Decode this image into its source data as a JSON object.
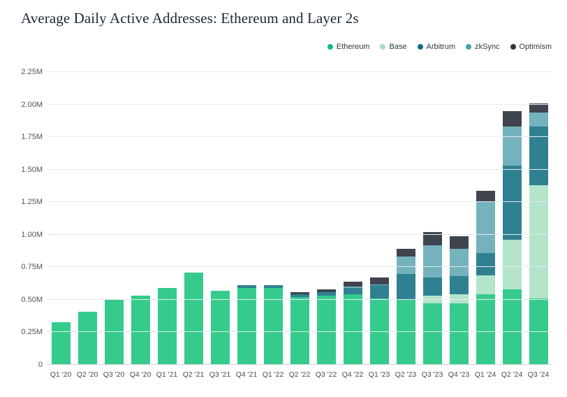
{
  "chart_data": {
    "type": "bar",
    "stacked": true,
    "title": "Average Daily Active Addresses: Ethereum and Layer 2s",
    "xlabel": "",
    "ylabel": "",
    "ylim": [
      0,
      2.25
    ],
    "y_unit": "M",
    "yticks": [
      "0",
      "0.25M",
      "0.50M",
      "0.75M",
      "1.00M",
      "1.25M",
      "1.50M",
      "1.75M",
      "2.00M",
      "2.25M"
    ],
    "ytick_values": [
      0,
      0.25,
      0.5,
      0.75,
      1.0,
      1.25,
      1.5,
      1.75,
      2.0,
      2.25
    ],
    "grid": "horizontal",
    "legend_position": "top-right",
    "categories": [
      "Q1 '20",
      "Q2 '20",
      "Q3 '20",
      "Q4 '20",
      "Q1 '21",
      "Q2 '21",
      "Q3 '21",
      "Q4 '21",
      "Q1 '22",
      "Q2 '22",
      "Q3 '22",
      "Q4 '22",
      "Q1 '23",
      "Q2 '23",
      "Q3 '23",
      "Q4 '23",
      "Q1 '24",
      "Q2 '24",
      "Q3 '24"
    ],
    "series": [
      {
        "name": "Ethereum",
        "dot_color": "#0fbf8a",
        "bar_color": "#34cb8d",
        "values": [
          0.33,
          0.41,
          0.5,
          0.53,
          0.59,
          0.71,
          0.57,
          0.59,
          0.59,
          0.52,
          0.53,
          0.54,
          0.51,
          0.5,
          0.47,
          0.47,
          0.54,
          0.58,
          0.51
        ]
      },
      {
        "name": "Base",
        "dot_color": "#a6dfc0",
        "bar_color": "#b4e5ca",
        "values": [
          0,
          0,
          0,
          0,
          0,
          0,
          0,
          0,
          0,
          0,
          0,
          0,
          0,
          0,
          0.06,
          0.07,
          0.15,
          0.38,
          0.87
        ]
      },
      {
        "name": "Arbitrum",
        "dot_color": "#176e82",
        "bar_color": "#2f8192",
        "values": [
          0,
          0,
          0,
          0,
          0,
          0,
          0,
          0.02,
          0.02,
          0.02,
          0.03,
          0.05,
          0.1,
          0.2,
          0.14,
          0.14,
          0.17,
          0.57,
          0.45
        ]
      },
      {
        "name": "zkSync",
        "dot_color": "#4aa0ad",
        "bar_color": "#74b2bd",
        "values": [
          0,
          0,
          0,
          0,
          0,
          0,
          0,
          0,
          0,
          0,
          0,
          0.01,
          0.01,
          0.13,
          0.25,
          0.21,
          0.39,
          0.3,
          0.11
        ]
      },
      {
        "name": "Optimism",
        "dot_color": "#2f363e",
        "bar_color": "#3e454e",
        "values": [
          0,
          0,
          0,
          0,
          0,
          0,
          0,
          0,
          0,
          0.02,
          0.02,
          0.04,
          0.05,
          0.06,
          0.1,
          0.1,
          0.09,
          0.12,
          0.07
        ]
      }
    ]
  }
}
